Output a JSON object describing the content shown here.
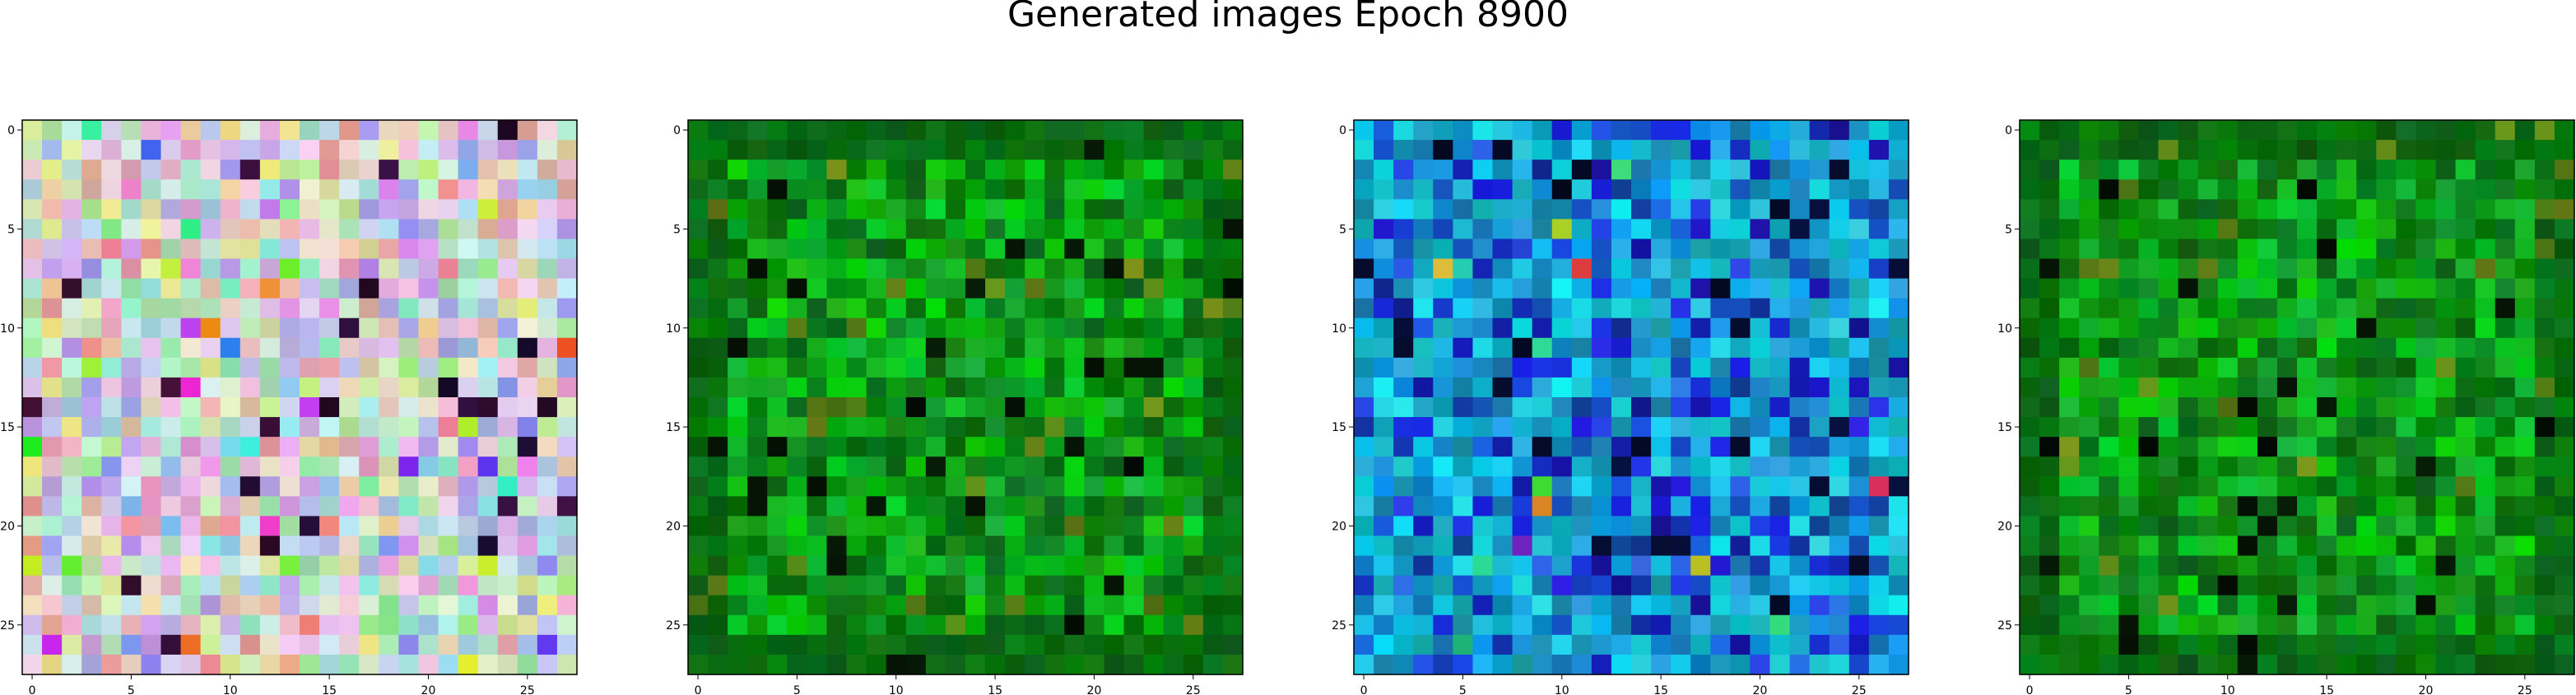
{
  "figure": {
    "title": "Generated images Epoch 8900"
  },
  "panels": [
    {
      "id": "panel-1",
      "grid_size": 28,
      "palette": "pastel-multicolor",
      "x_ticks": [
        "0",
        "5",
        "10",
        "15",
        "20",
        "25"
      ],
      "y_ticks": [
        "0",
        "5",
        "10",
        "15",
        "20",
        "25"
      ]
    },
    {
      "id": "panel-2",
      "grid_size": 28,
      "palette": "green",
      "x_ticks": [
        "0",
        "5",
        "10",
        "15",
        "20",
        "25"
      ],
      "y_ticks": [
        "0",
        "5",
        "10",
        "15",
        "20",
        "25"
      ]
    },
    {
      "id": "panel-3",
      "grid_size": 28,
      "palette": "blue-teal",
      "x_ticks": [
        "0",
        "5",
        "10",
        "15",
        "20",
        "25"
      ],
      "y_ticks": [
        "0",
        "5",
        "10",
        "15",
        "20",
        "25"
      ]
    },
    {
      "id": "panel-4",
      "grid_size": 28,
      "palette": "green",
      "x_ticks": [
        "0",
        "5",
        "10",
        "15",
        "20",
        "25"
      ],
      "y_ticks": [
        "0",
        "5",
        "10",
        "15",
        "20",
        "25"
      ]
    }
  ]
}
